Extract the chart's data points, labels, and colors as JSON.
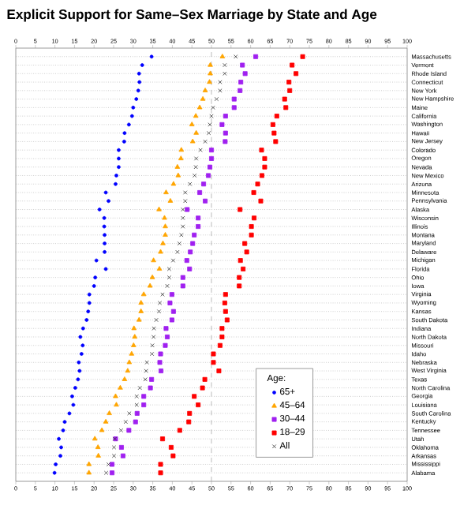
{
  "chart_data": {
    "type": "scatter",
    "orientation": "horizontal",
    "title": "Explicit Support for Same–Sex Marriage by State and Age",
    "categories": [
      "Massachusetts",
      "Vermont",
      "Rhode Island",
      "Connecticut",
      "New York",
      "New Hampshire",
      "Maine",
      "California",
      "Washington",
      "Hawaii",
      "New Jersey",
      "Colorado",
      "Oregon",
      "Nevada",
      "New Mexico",
      "Arizona",
      "Minnesota",
      "Pennsylvania",
      "Alaska",
      "Wisconsin",
      "Illinois",
      "Montana",
      "Maryland",
      "Delaware",
      "Michigan",
      "Florida",
      "Ohio",
      "Iowa",
      "Virginia",
      "Wyoming",
      "Kansas",
      "South Dakota",
      "Indiana",
      "North Dakota",
      "Missouri",
      "Idaho",
      "Nebraska",
      "West Virginia",
      "Texas",
      "North Carolina",
      "Georgia",
      "Louisiana",
      "South Carolina",
      "Kentucky",
      "Tennessee",
      "Utah",
      "Oklahoma",
      "Arkansas",
      "Mississippi",
      "Alabama"
    ],
    "series": [
      {
        "name": "65+",
        "color": "#0000ff",
        "marker": "circle",
        "values": [
          34.7,
          32.3,
          31.5,
          31.6,
          31.3,
          30.8,
          30.0,
          29.7,
          28.9,
          27.8,
          27.7,
          26.3,
          26.3,
          26.3,
          25.7,
          25.5,
          23.0,
          23.7,
          21.4,
          22.6,
          22.6,
          22.7,
          22.7,
          22.7,
          20.6,
          23.0,
          20.3,
          20.0,
          18.8,
          18.8,
          18.5,
          18.1,
          17.2,
          16.5,
          17.1,
          16.8,
          16.1,
          16.3,
          15.9,
          15.2,
          14.4,
          14.7,
          13.7,
          12.5,
          12.1,
          11.0,
          11.6,
          11.4,
          10.2,
          9.9
        ]
      },
      {
        "name": "45–64",
        "color": "#ffa500",
        "marker": "triangle",
        "values": [
          52.8,
          49.7,
          49.7,
          49.5,
          48.4,
          47.8,
          47.0,
          46.0,
          45.0,
          46.1,
          45.2,
          42.3,
          42.2,
          41.3,
          41.5,
          40.3,
          38.4,
          39.5,
          36.6,
          38.0,
          38.2,
          38.2,
          37.6,
          37.0,
          35.2,
          36.7,
          34.9,
          34.3,
          32.7,
          32.0,
          32.0,
          31.5,
          30.2,
          30.4,
          30.1,
          29.6,
          29.0,
          28.6,
          27.8,
          26.7,
          25.5,
          25.7,
          23.9,
          23.0,
          22.0,
          20.2,
          21.0,
          21.1,
          18.7,
          18.7
        ]
      },
      {
        "name": "30–44",
        "color": "#a020f0",
        "marker": "square",
        "values": [
          61.3,
          57.9,
          58.6,
          57.5,
          57.3,
          55.8,
          55.8,
          53.6,
          52.7,
          53.6,
          53.5,
          50.0,
          50.0,
          49.6,
          49.2,
          48.0,
          47.0,
          48.4,
          43.8,
          46.6,
          46.6,
          45.6,
          45.2,
          44.6,
          43.7,
          44.4,
          42.7,
          42.7,
          39.9,
          39.4,
          40.3,
          39.9,
          38.4,
          38.7,
          38.2,
          37.0,
          36.8,
          37.1,
          34.7,
          34.4,
          32.7,
          32.7,
          31.0,
          30.6,
          28.9,
          25.5,
          27.0,
          27.4,
          24.6,
          24.6
        ]
      },
      {
        "name": "18–29",
        "color": "#ff0000",
        "marker": "square",
        "values": [
          73.3,
          70.6,
          71.6,
          69.8,
          70.0,
          68.7,
          69.0,
          66.7,
          65.7,
          66.0,
          66.4,
          62.8,
          63.6,
          63.6,
          62.9,
          61.8,
          60.8,
          62.6,
          57.3,
          60.9,
          60.2,
          60.2,
          58.5,
          59.0,
          57.4,
          58.1,
          57.1,
          57.1,
          53.6,
          53.4,
          53.6,
          54.0,
          52.7,
          52.7,
          52.2,
          50.5,
          50.5,
          51.9,
          48.3,
          47.7,
          45.6,
          46.6,
          44.4,
          44.2,
          41.9,
          37.5,
          39.7,
          40.2,
          37.0,
          37.0
        ]
      },
      {
        "name": "All",
        "color": "#333333",
        "marker": "cross",
        "values": [
          56.2,
          53.4,
          53.4,
          52.2,
          52.2,
          51.3,
          50.4,
          50.0,
          49.6,
          49.3,
          48.4,
          47.2,
          46.1,
          46.0,
          45.7,
          44.5,
          43.3,
          43.3,
          42.7,
          42.7,
          42.7,
          42.3,
          41.8,
          41.3,
          40.2,
          39.2,
          39.2,
          38.7,
          37.5,
          36.8,
          36.6,
          35.9,
          35.3,
          35.2,
          34.9,
          34.8,
          33.5,
          33.3,
          33.1,
          31.7,
          30.9,
          30.9,
          29.0,
          28.1,
          26.9,
          25.3,
          25.1,
          25.1,
          23.7,
          23.1
        ]
      }
    ],
    "xlim": [
      0,
      100
    ],
    "xticks": [
      0,
      5,
      10,
      15,
      20,
      25,
      30,
      35,
      40,
      45,
      50,
      55,
      60,
      65,
      70,
      75,
      80,
      85,
      90,
      95,
      100
    ],
    "x2lim": [
      0,
      100
    ],
    "x2ticks": [
      0,
      5,
      10,
      15,
      20,
      25,
      30,
      35,
      40,
      45,
      50,
      55,
      60,
      65,
      70,
      75,
      80,
      85,
      90,
      95,
      100
    ],
    "ref_lines": [
      {
        "axis": "x",
        "value": 50,
        "color": "#aaaaaa",
        "line_style": "dashed"
      }
    ],
    "grid": "y",
    "legend": "bottom right",
    "legend_title": "Age:"
  }
}
